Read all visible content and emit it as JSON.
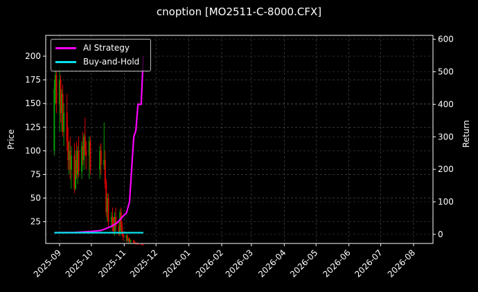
{
  "chart_data": {
    "type": "line",
    "title": "cnoption [MO2511-C-8000.CFX]",
    "xlabel": "",
    "ylabel_left": "Price",
    "ylabel_right": "Return",
    "x_tick_labels": [
      "2025-09",
      "2025-10",
      "2025-11",
      "2025-12",
      "2026-01",
      "2026-02",
      "2026-03",
      "2026-04",
      "2026-05",
      "2026-06",
      "2026-07",
      "2026-08"
    ],
    "y_left_ticks": [
      25,
      50,
      75,
      100,
      125,
      150,
      175,
      200
    ],
    "y_left_range": [
      2,
      222
    ],
    "y_right_ticks": [
      0,
      100,
      200,
      300,
      400,
      500,
      600
    ],
    "y_right_range": [
      -28,
      612
    ],
    "grid": true,
    "legend_position": "upper left",
    "series": [
      {
        "name": "AI Strategy",
        "color": "#ff00ff",
        "axis": "right",
        "x": [
          "2025-08-27",
          "2025-09-15",
          "2025-10-01",
          "2025-10-10",
          "2025-10-15",
          "2025-10-20",
          "2025-10-25",
          "2025-10-28",
          "2025-11-01",
          "2025-11-03",
          "2025-11-06",
          "2025-11-08",
          "2025-11-10",
          "2025-11-12",
          "2025-11-14",
          "2025-11-17",
          "2025-11-19"
        ],
        "values": [
          5,
          6,
          9,
          12,
          18,
          25,
          35,
          45,
          60,
          65,
          100,
          200,
          300,
          320,
          400,
          400,
          550
        ]
      },
      {
        "name": "Buy-and-Hold",
        "color": "#00e5ee",
        "axis": "right",
        "x": [
          "2025-08-27",
          "2025-11-19"
        ],
        "values": [
          5,
          5
        ]
      },
      {
        "name": "Candlesticks (Price)",
        "type": "candlestick",
        "axis": "left",
        "up_color": "#00a000",
        "down_color": "#e00000",
        "note": "Daily OHLC for option price from late Aug 2025 to mid Nov 2025, starting ~100-200 and decaying to ~2"
      }
    ]
  },
  "legend": {
    "items": [
      {
        "label": "AI Strategy",
        "color": "#ff00ff"
      },
      {
        "label": "Buy-and-Hold",
        "color": "#00e5ee"
      }
    ]
  }
}
